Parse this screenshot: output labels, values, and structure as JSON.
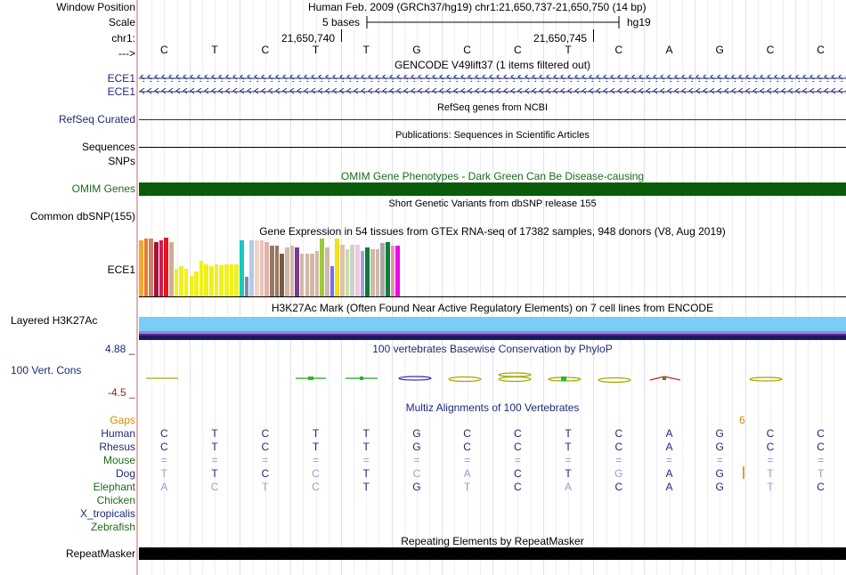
{
  "header": {
    "window_position_label": "Window Position",
    "window_position_value": "Human Feb. 2009 (GRCh37/hg19)   chr1:21,650,737-21,650,750 (14 bp)",
    "scale_label": "Scale",
    "scale_bases": "5 bases",
    "scale_assembly": "hg19",
    "chrom_label": "chr1:",
    "coord1": "21,650,740",
    "coord2": "21,650,745",
    "strand_label": "--->",
    "bases": [
      "C",
      "T",
      "C",
      "T",
      "T",
      "G",
      "C",
      "C",
      "T",
      "C",
      "A",
      "G",
      "C",
      "C"
    ]
  },
  "gencode": {
    "title": "GENCODE V49lift37 (1 items filtered out)",
    "rows": [
      "ECE1",
      "ECE1"
    ]
  },
  "refseq": {
    "label": "RefSeq Curated",
    "title": "RefSeq genes from NCBI"
  },
  "publications": {
    "label": "Sequences",
    "title": "Publications: Sequences in Scientific Articles"
  },
  "snps": {
    "label": "SNPs"
  },
  "omim": {
    "title": "OMIM Gene Phenotypes - Dark Green Can Be Disease-causing",
    "label": "OMIM Genes",
    "color": "#0a5c0a"
  },
  "dbsnp": {
    "title": "Short Genetic Variants from dbSNP release 155",
    "label": "Common dbSNP(155)"
  },
  "gtex": {
    "title": "Gene Expression in 54 tissues from GTEx RNA-seq of 17382 samples, 948 donors (V8, Aug 2019)",
    "label": "ECE1",
    "bars": [
      {
        "v": 0.96,
        "c": "#f6a531"
      },
      {
        "v": 0.98,
        "c": "#e67c2c"
      },
      {
        "v": 0.98,
        "c": "#c98466"
      },
      {
        "v": 0.92,
        "c": "#a90f3c"
      },
      {
        "v": 0.96,
        "c": "#ce1e4e"
      },
      {
        "v": 1.0,
        "c": "#e6161c"
      },
      {
        "v": 0.92,
        "c": "#caaf96"
      },
      {
        "v": 0.47,
        "c": "#f0f01e"
      },
      {
        "v": 0.51,
        "c": "#f0f01e"
      },
      {
        "v": 0.47,
        "c": "#f0f01e"
      },
      {
        "v": 0.35,
        "c": "#f0f01e"
      },
      {
        "v": 0.43,
        "c": "#f0f01e"
      },
      {
        "v": 0.6,
        "c": "#f0f01e"
      },
      {
        "v": 0.55,
        "c": "#f0f01e"
      },
      {
        "v": 0.51,
        "c": "#f0f01e"
      },
      {
        "v": 0.55,
        "c": "#f0f01e"
      },
      {
        "v": 0.53,
        "c": "#f0f01e"
      },
      {
        "v": 0.55,
        "c": "#f0f01e"
      },
      {
        "v": 0.55,
        "c": "#f0f01e"
      },
      {
        "v": 0.55,
        "c": "#f0f01e"
      },
      {
        "v": 0.96,
        "c": "#18c8c4"
      },
      {
        "v": 0.34,
        "c": "#7b8fa8"
      },
      {
        "v": 0.96,
        "c": "#b5c8e8"
      },
      {
        "v": 0.96,
        "c": "#f0d4c4"
      },
      {
        "v": 0.96,
        "c": "#e8c4bc"
      },
      {
        "v": 0.93,
        "c": "#e4b0ac"
      },
      {
        "v": 0.86,
        "c": "#9a7860"
      },
      {
        "v": 0.86,
        "c": "#9a7860"
      },
      {
        "v": 0.73,
        "c": "#7a5c44"
      },
      {
        "v": 0.84,
        "c": "#d0b8a8"
      },
      {
        "v": 0.86,
        "c": "#d0b8a8"
      },
      {
        "v": 0.84,
        "c": "#7a3a90"
      },
      {
        "v": 0.73,
        "c": "#d0b8a8"
      },
      {
        "v": 0.73,
        "c": "#d0b8a8"
      },
      {
        "v": 0.73,
        "c": "#d0b8a8"
      },
      {
        "v": 0.77,
        "c": "#d0b8a8"
      },
      {
        "v": 0.98,
        "c": "#a0c83c"
      },
      {
        "v": 0.83,
        "c": "#d0b8a8"
      },
      {
        "v": 0.51,
        "c": "#7070f0"
      },
      {
        "v": 0.98,
        "c": "#f0e01e"
      },
      {
        "v": 0.88,
        "c": "#e0c0a8"
      },
      {
        "v": 0.8,
        "c": "#c0e0a8"
      },
      {
        "v": 0.88,
        "c": "#d0d0d0"
      },
      {
        "v": 0.88,
        "c": "#f0c8d8"
      },
      {
        "v": 0.78,
        "c": "#a0a0e0"
      },
      {
        "v": 0.83,
        "c": "#0a7a3a"
      },
      {
        "v": 0.8,
        "c": "#d0b8a8"
      },
      {
        "v": 0.8,
        "c": "#d0b8a8"
      },
      {
        "v": 0.91,
        "c": "#a8a8a8"
      },
      {
        "v": 0.93,
        "c": "#08803c"
      },
      {
        "v": 0.86,
        "c": "#f090a8"
      },
      {
        "v": 0.86,
        "c": "#f000f0"
      }
    ]
  },
  "h3k27ac": {
    "title": "H3K27Ac Mark (Often Found Near Active Regulatory Elements) on 7 cell lines from ENCODE",
    "label": "Layered H3K27Ac"
  },
  "phylop": {
    "title": "100 vertebrates Basewise Conservation by PhyloP",
    "label": "100 Vert. Cons",
    "ymax": "4.88 _",
    "ymin": "-4.5 _"
  },
  "multiz": {
    "title": "Multiz Alignments of 100 Vertebrates",
    "gaps_label": "Gaps",
    "gap_count": "6",
    "species": [
      {
        "name": "Human",
        "color": "#1f2a74",
        "bases": [
          "C",
          "T",
          "C",
          "T",
          "T",
          "G",
          "C",
          "C",
          "T",
          "C",
          "A",
          "G",
          "C",
          "C"
        ],
        "shade": [
          "d",
          "d",
          "d",
          "d",
          "d",
          "d",
          "d",
          "d",
          "d",
          "d",
          "d",
          "d",
          "d",
          "d"
        ]
      },
      {
        "name": "Rhesus",
        "color": "#1f2a74",
        "bases": [
          "C",
          "T",
          "C",
          "T",
          "T",
          "G",
          "C",
          "C",
          "T",
          "C",
          "A",
          "G",
          "C",
          "C"
        ],
        "shade": [
          "d",
          "d",
          "d",
          "d",
          "d",
          "d",
          "d",
          "d",
          "d",
          "d",
          "d",
          "d",
          "d",
          "d"
        ]
      },
      {
        "name": "Mouse",
        "color": "#1c6b1c",
        "bases": [
          "=",
          "=",
          "=",
          "=",
          "=",
          "=",
          "=",
          "=",
          "=",
          "=",
          "=",
          "=",
          "=",
          "="
        ],
        "shade": [
          "l",
          "l",
          "l",
          "l",
          "l",
          "l",
          "l",
          "l",
          "l",
          "l",
          "l",
          "l",
          "l",
          "l"
        ]
      },
      {
        "name": "Dog",
        "color": "#1f2a74",
        "bases": [
          "T",
          "T",
          "C",
          "C",
          "T",
          "C",
          "A",
          "C",
          "T",
          "G",
          "A",
          "G",
          "T",
          "T"
        ],
        "shade": [
          "l",
          "d",
          "d",
          "l",
          "d",
          "l",
          "l",
          "d",
          "d",
          "l",
          "d",
          "d",
          "l",
          "l"
        ]
      },
      {
        "name": "Elephant",
        "color": "#1c6b1c",
        "bases": [
          "A",
          "C",
          "T",
          "C",
          "T",
          "G",
          "T",
          "C",
          "A",
          "C",
          "A",
          "G",
          "T",
          "C"
        ],
        "shade": [
          "l",
          "l",
          "l",
          "l",
          "d",
          "d",
          "l",
          "d",
          "l",
          "d",
          "d",
          "d",
          "l",
          "d"
        ]
      },
      {
        "name": "Chicken",
        "color": "#1c6b1c",
        "bases": [],
        "shade": []
      },
      {
        "name": "X_tropicalis",
        "color": "#1f2a74",
        "bases": [],
        "shade": []
      },
      {
        "name": "Zebrafish",
        "color": "#1c6b1c",
        "bases": [],
        "shade": []
      }
    ]
  },
  "repeatmasker": {
    "title": "Repeating Elements by RepeatMasker",
    "label": "RepeatMasker"
  }
}
